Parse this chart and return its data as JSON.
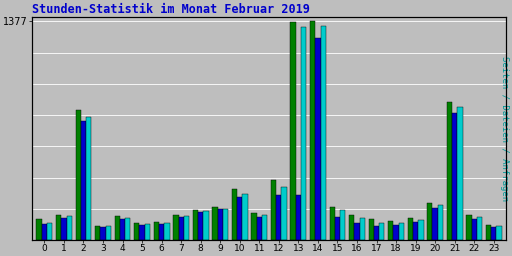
{
  "title": "Stunden-Statistik im Monat Februar 2019",
  "ylabel_right": "Seiten / Dateien / Anfragen",
  "ytick_label": "1377",
  "hours": [
    0,
    1,
    2,
    3,
    4,
    5,
    6,
    7,
    8,
    9,
    10,
    11,
    12,
    13,
    14,
    15,
    16,
    17,
    18,
    19,
    20,
    21,
    22,
    23
  ],
  "seiten": [
    130,
    160,
    820,
    90,
    150,
    110,
    115,
    160,
    190,
    205,
    320,
    170,
    375,
    1370,
    1377,
    205,
    155,
    130,
    120,
    140,
    235,
    870,
    155,
    95
  ],
  "dateien": [
    100,
    140,
    750,
    85,
    130,
    95,
    100,
    145,
    175,
    195,
    270,
    145,
    285,
    285,
    1270,
    145,
    105,
    90,
    95,
    115,
    200,
    800,
    130,
    82
  ],
  "anfragen": [
    110,
    150,
    775,
    88,
    140,
    100,
    108,
    150,
    182,
    198,
    290,
    158,
    335,
    1340,
    1345,
    190,
    140,
    110,
    108,
    125,
    218,
    835,
    142,
    88
  ],
  "color_seiten": "#008000",
  "color_dateien": "#0000CC",
  "color_anfragen": "#00CCCC",
  "bg_color": "#BEBEBE",
  "plot_bg": "#BEBEBE",
  "title_color": "#0000CC",
  "right_label_color": "#009999",
  "ymax": 1377,
  "bar_width": 0.27,
  "grid_color": "#AAAAAA",
  "figsize": [
    5.12,
    2.56
  ],
  "dpi": 100
}
